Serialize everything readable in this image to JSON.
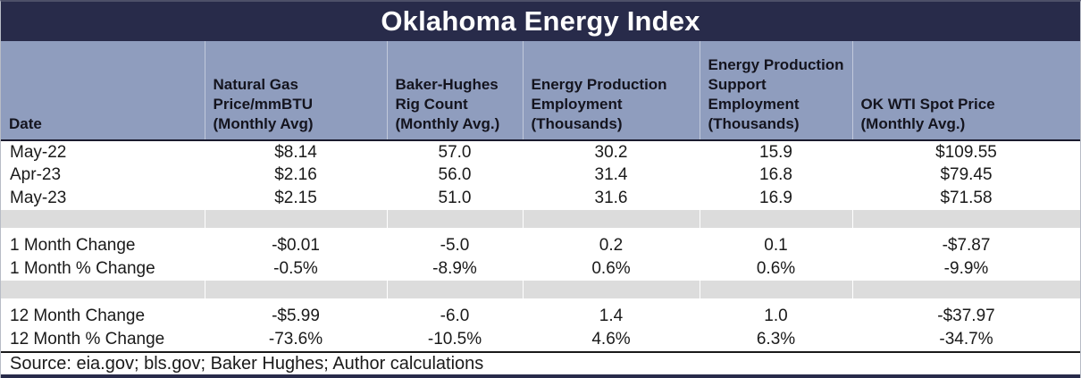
{
  "title_bar": {
    "title": "Oklahoma Energy Index"
  },
  "colors": {
    "title_bar_bg": "#282b4a",
    "title_text": "#ffffff",
    "header_bg": "#8f9dbe",
    "header_text": "#14141e",
    "separator_gray": "#dcdcdc",
    "body_text": "#1a1a1a",
    "rule_dark": "#1a1a1a",
    "bottom_bar": "#282b4a"
  },
  "chart_data": {
    "type": "table",
    "title": "Oklahoma Energy Index",
    "columns": [
      "Date",
      "Natural Gas Price/mmBTU (Monthly Avg)",
      "Baker-Hughes Rig Count (Monthly Avg.)",
      "Energy Production Employment (Thousands)",
      "Energy Production Support Employment (Thousands)",
      "OK WTI Spot Price (Monthly Avg.)"
    ],
    "header_labels": [
      "Date",
      "Natural Gas\nPrice/mmBTU\n(Monthly Avg)",
      "Baker-Hughes\nRig Count\n(Monthly Avg.)",
      "Energy Production\nEmployment\n(Thousands)",
      "Energy Production\nSupport\nEmployment\n(Thousands)",
      "OK WTI Spot Price\n(Monthly Avg.)"
    ],
    "rows": [
      {
        "kind": "data",
        "label": "May-22",
        "values": [
          "$8.14",
          "57.0",
          "30.2",
          "15.9",
          "$109.55"
        ]
      },
      {
        "kind": "data",
        "label": "Apr-23",
        "values": [
          "$2.16",
          "56.0",
          "31.4",
          "16.8",
          "$79.45"
        ]
      },
      {
        "kind": "data",
        "label": "May-23",
        "values": [
          "$2.15",
          "51.0",
          "31.6",
          "16.9",
          "$71.58"
        ]
      },
      {
        "kind": "separator"
      },
      {
        "kind": "data",
        "label": "1 Month Change",
        "values": [
          "-$0.01",
          "-5.0",
          "0.2",
          "0.1",
          "-$7.87"
        ]
      },
      {
        "kind": "data",
        "label": "1 Month % Change",
        "values": [
          "-0.5%",
          "-8.9%",
          "0.6%",
          "0.6%",
          "-9.9%"
        ]
      },
      {
        "kind": "separator"
      },
      {
        "kind": "data",
        "label": "12 Month Change",
        "values": [
          "-$5.99",
          "-6.0",
          "1.4",
          "1.0",
          "-$37.97"
        ]
      },
      {
        "kind": "data",
        "label": "12 Month % Change",
        "values": [
          "-73.6%",
          "-10.5%",
          "4.6%",
          "6.3%",
          "-34.7%"
        ]
      }
    ]
  },
  "footer": {
    "source": "Source: eia.gov; bls.gov; Baker Hughes; Author calculations"
  }
}
